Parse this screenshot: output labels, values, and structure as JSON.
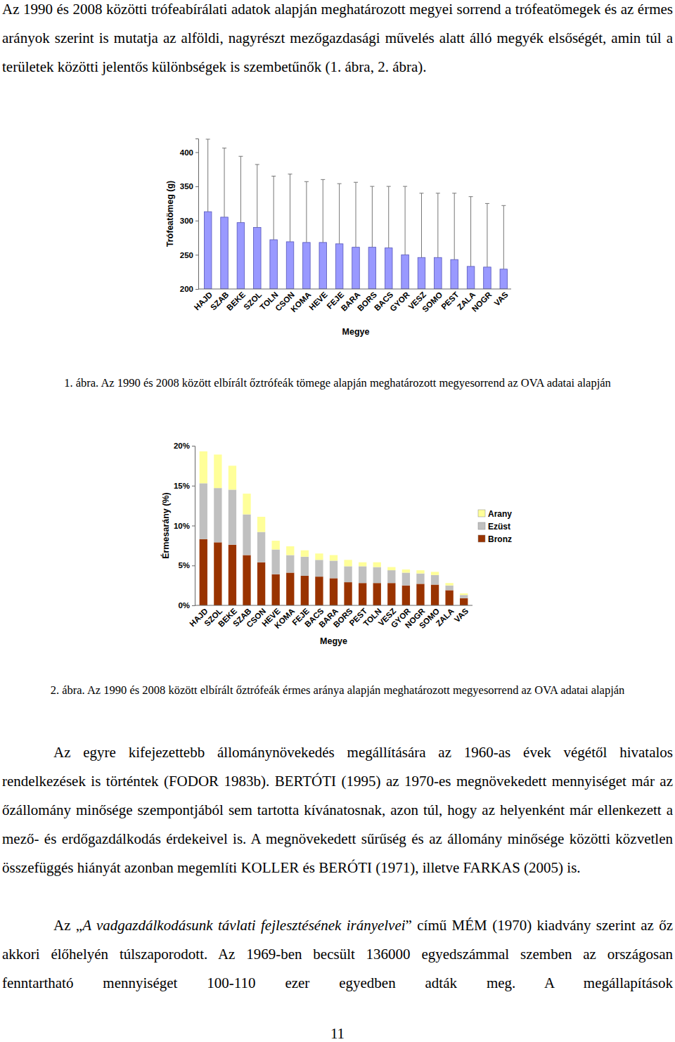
{
  "chart_data": [
    {
      "type": "bar",
      "title": "1. ábra. Az 1990 és 2008 között elbírált őztrófeák tömege alapján meghatározott megyesorrend az OVA adatai alapján",
      "xlabel": "Megye",
      "ylabel": "Trófeatömeg (g)",
      "categories": [
        "HAJD",
        "SZAB",
        "BEKE",
        "SZOL",
        "TOLN",
        "CSON",
        "KOMA",
        "HEVE",
        "FEJE",
        "BARA",
        "BORS",
        "BACS",
        "GYOR",
        "VESZ",
        "SOMO",
        "PEST",
        "ZALA",
        "NOGR",
        "VAS"
      ],
      "values": [
        313,
        305,
        297,
        290,
        272,
        269,
        268,
        268,
        266,
        261,
        261,
        260,
        250,
        246,
        246,
        243,
        233,
        232,
        229
      ],
      "errors": [
        106,
        101,
        97,
        92,
        93,
        99,
        89,
        92,
        88,
        95,
        89,
        90,
        100,
        94,
        94,
        97,
        102,
        93,
        93
      ],
      "color": "#9999ff",
      "ylim": [
        200,
        420
      ],
      "yticks": [
        200,
        250,
        300,
        350,
        400
      ],
      "grid": false
    },
    {
      "type": "bar",
      "stacked": true,
      "title": "2. ábra. Az 1990 és 2008 között elbírált őztrófeák érmes aránya alapján meghatározott megyesorrend az OVA adatai alapján",
      "xlabel": "Megye",
      "ylabel": "Érmesarány (%)",
      "categories": [
        "HAJD",
        "SZOL",
        "BEKE",
        "SZAB",
        "CSON",
        "HEVE",
        "KOMA",
        "FEJE",
        "BACS",
        "BARA",
        "BORS",
        "PEST",
        "TOLN",
        "VESZ",
        "GYOR",
        "NOGR",
        "SOMO",
        "ZALA",
        "VAS"
      ],
      "series": [
        {
          "name": "Bronz",
          "color": "#993300",
          "values": [
            8.3,
            7.9,
            7.6,
            6.3,
            5.4,
            3.9,
            4.1,
            3.7,
            3.6,
            3.4,
            2.9,
            2.8,
            2.8,
            2.8,
            2.5,
            2.7,
            2.6,
            1.9,
            0.9
          ]
        },
        {
          "name": "Ezüst",
          "color": "#c0c0c0",
          "values": [
            7.0,
            6.8,
            6.9,
            5.1,
            3.8,
            3.1,
            2.2,
            2.4,
            2.1,
            2.2,
            2.0,
            2.1,
            2.0,
            1.6,
            1.6,
            1.3,
            1.2,
            0.6,
            0.4
          ]
        },
        {
          "name": "Arany",
          "color": "#ffff99",
          "values": [
            4.0,
            4.2,
            3.0,
            2.6,
            1.9,
            1.1,
            1.1,
            0.8,
            0.8,
            0.7,
            0.8,
            0.5,
            0.6,
            0.4,
            0.4,
            0.4,
            0.4,
            0.3,
            0.2
          ]
        }
      ],
      "ylim": [
        0,
        20
      ],
      "yticks": [
        {
          "value": 0,
          "label": "0%"
        },
        {
          "value": 5,
          "label": "5%"
        },
        {
          "value": 10,
          "label": "10%"
        },
        {
          "value": 15,
          "label": "15%"
        },
        {
          "value": 20,
          "label": "20%"
        }
      ],
      "legend": "right",
      "grid": false
    }
  ],
  "document": {
    "paragraphs": [
      [
        {
          "text": "Az 1990 és 2008 közötti trófeabírálati adatok alapján meghatározott megyei sorrend a trófeatömegek és az érmes arányok szerint is mutatja az alföldi, nagyrészt mezőgazdasági művelés alatt álló megyék elsőségét, amin túl a területek közötti jelentős különbségek is szembetűnők (1. ábra, 2. ábra)."
        }
      ],
      [
        {
          "text": "Az egyre kifejezettebb állománynövekedés megállítására az 1960-as évek végétől hivatalos rendelkezések is történtek (FODOR 1983b). BERTÓTI (1995) az 1970-es megnövekedett mennyiséget már az őzállomány minősége szempontjából sem tartotta kívánatosnak, azon túl, hogy az helyenként már ellenkezett a mező- és erdőgazdálkodás érdekeivel is. A megnövekedett sűrűség és az állomány minősége közötti közvetlen összefüggés hiányát azonban megemlíti KOLLER és BERÓTI (1971), illetve FARKAS (2005) is."
        }
      ],
      [
        {
          "text": "Az „"
        },
        {
          "text": "A vadgazdálkodásunk távlati fejlesztésének irányelvei",
          "italic": true
        },
        {
          "text": "” című MÉM (1970) kiadvány szerint az őz akkori élőhelyén túlszaporodott. Az 1969-ben becsült 136000 egyedszámmal szemben az országosan fenntartható mennyiséget 100-110 ezer egyedben adták meg. A megállapítások"
        }
      ]
    ],
    "page_number": "11"
  }
}
